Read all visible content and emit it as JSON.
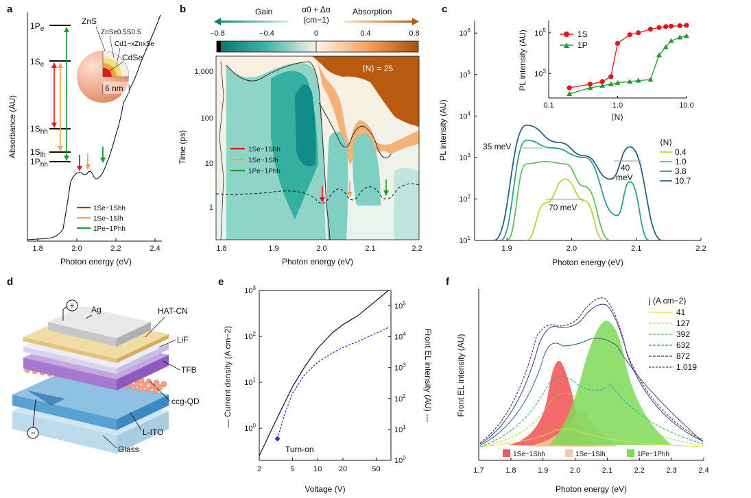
{
  "colors": {
    "red": "#e3141b",
    "orange": "#f2a25b",
    "green": "#1e9b2f",
    "pl_04": "#b9d33e",
    "pl_10": "#62bd5e",
    "pl_38": "#2e9c8c",
    "pl_107": "#2b5e86",
    "gain": "#1f9d93",
    "absorption": "#b85a0f"
  },
  "panel_labels": [
    "a",
    "b",
    "c",
    "d",
    "e",
    "f"
  ],
  "panel_a": {
    "xlabel": "Photon energy (eV)",
    "ylabel": "Absorbance (AU)",
    "xticks": [
      "1.8",
      "2.0",
      "2.2",
      "2.4"
    ],
    "levels": [
      {
        "main": "1P",
        "sub": "e"
      },
      {
        "main": "1S",
        "sub": "e"
      },
      {
        "main": "1S",
        "sub": "hh"
      },
      {
        "main": "1S",
        "sub": "lh"
      },
      {
        "main": "1P",
        "sub": "hh"
      }
    ],
    "shell_labels": [
      "ZnS",
      "ZnSe0.5S0.5",
      "Cd1−xZnxSe",
      "CdSe"
    ],
    "size_label": "6 nm",
    "legend": [
      "1Se−1Shh",
      "1Se−1Slh",
      "1Pe−1Phh"
    ],
    "chart_data": {
      "type": "line",
      "x": [
        1.78,
        1.85,
        1.9,
        1.95,
        2.0,
        2.03,
        2.06,
        2.09,
        2.13,
        2.18,
        2.22,
        2.26,
        2.3,
        2.35,
        2.4
      ],
      "values": [
        0.02,
        0.05,
        0.09,
        0.16,
        0.25,
        0.33,
        0.31,
        0.34,
        0.37,
        0.47,
        0.57,
        0.62,
        0.73,
        0.85,
        0.98
      ],
      "xlim": [
        1.75,
        2.45
      ],
      "transition_energies_eV": [
        2.02,
        2.06,
        2.14
      ]
    }
  },
  "panel_b": {
    "colorbar_title": "α0 + Δα",
    "colorbar_unit": "(cm−1)",
    "gain_label": "Gain",
    "absorption_label": "Absorption",
    "colorbar_ticks": [
      "−0.8",
      "−0.4",
      "0",
      "0.4",
      "0.8"
    ],
    "n_label": "⟨N⟩ = 25",
    "xlabel": "Photon energy (eV)",
    "ylabel": "Time (ps)",
    "xticks": [
      "1.8",
      "1.9",
      "2.0",
      "2.1",
      "2.2"
    ],
    "yticks": [
      "1",
      "10",
      "100",
      "1,000"
    ],
    "legend": [
      "1Se−1Shh",
      "1Se−1Slh",
      "1Pe−1Phh"
    ],
    "chart_data": {
      "type": "heatmap",
      "xlim": [
        1.78,
        2.2
      ],
      "ylim_ps": [
        0.25,
        2000
      ],
      "yscale": "log",
      "colorbar_range": [
        -0.8,
        0.8
      ],
      "gain_region_note": "teal gain lobes centred near 1.96, 2.03 and 2.09 eV",
      "transition_energies_eV": [
        2.0,
        2.055,
        2.13
      ]
    }
  },
  "panel_c": {
    "xlabel": "Photon energy (eV)",
    "ylabel": "PL intensity (AU)",
    "xticks": [
      "1.9",
      "2.0",
      "2.1",
      "2.2"
    ],
    "yticks": [
      "10^1",
      "10^2",
      "10^3",
      "10^4",
      "10^5",
      "10^6"
    ],
    "annotations": [
      "35 meV",
      "70 meV",
      "40",
      "meV"
    ],
    "legend_title": "⟨N⟩",
    "inset": {
      "xlabel": "⟨N⟩",
      "ylabel": "PL intensity (AU)",
      "xticks": [
        "0.1",
        "1.0",
        "10.0"
      ],
      "yticks": [
        "10^3",
        "10^5"
      ],
      "legend": [
        "1S",
        "1P"
      ]
    },
    "chart_data": {
      "type": "line",
      "yscale": "log",
      "xlim": [
        1.85,
        2.2
      ],
      "ylim": [
        10,
        2000000
      ],
      "series": [
        {
          "name": "0.4",
          "x": [
            1.93,
            1.96,
            1.99,
            2.02,
            2.05
          ],
          "values": [
            10,
            80,
            300,
            90,
            10
          ]
        },
        {
          "name": "1.0",
          "x": [
            1.9,
            1.93,
            1.96,
            1.99,
            2.02,
            2.06
          ],
          "values": [
            10,
            700,
            800,
            700,
            200,
            10
          ]
        },
        {
          "name": "3.8",
          "x": [
            1.89,
            1.93,
            1.97,
            2.02,
            2.07,
            2.09,
            2.12
          ],
          "values": [
            10,
            2600,
            1700,
            1000,
            40,
            260,
            10
          ]
        },
        {
          "name": "10.7",
          "x": [
            1.88,
            1.93,
            1.98,
            2.02,
            2.06,
            2.09,
            2.14
          ],
          "values": [
            10,
            6000,
            2300,
            1100,
            300,
            1800,
            10
          ]
        }
      ],
      "inset_series": [
        {
          "name": "1S",
          "x": [
            0.2,
            0.4,
            0.6,
            0.8,
            1.0,
            1.5,
            2.0,
            3.0,
            4.0,
            5.0,
            6.0,
            8.0,
            10.0
          ],
          "values": [
            200,
            300,
            400,
            700,
            30000,
            80000,
            100000,
            150000,
            180000,
            200000,
            210000,
            220000,
            230000
          ]
        },
        {
          "name": "1P",
          "x": [
            0.2,
            0.4,
            0.6,
            0.8,
            1.0,
            1.5,
            2.0,
            3.0,
            4.0,
            5.0,
            6.0,
            8.0,
            10.0
          ],
          "values": [
            100,
            200,
            250,
            300,
            350,
            400,
            450,
            500,
            8000,
            20000,
            40000,
            60000,
            70000
          ]
        }
      ]
    }
  },
  "panel_d": {
    "layers": [
      "Ag",
      "HAT-CN",
      "LiF",
      "TFB",
      "ccg-QD",
      "L-ITO",
      "Glass"
    ],
    "plus": "+",
    "minus": "−"
  },
  "panel_e": {
    "xlabel": "Voltage (V)",
    "ylabel_left": "Current density (A cm−2)",
    "ylabel_right": "Front EL intensity (AU)",
    "xticks": [
      "2",
      "5",
      "10",
      "20",
      "50"
    ],
    "yticks_left": [
      "10^0",
      "10^1",
      "10^2",
      "10^3"
    ],
    "yticks_right": [
      "10^0",
      "10^1",
      "10^2",
      "10^3",
      "10^4",
      "10^5"
    ],
    "turn_on": "Turn-on",
    "chart_data": {
      "type": "line",
      "xscale": "log",
      "yscale": "log",
      "series": [
        {
          "name": "Current density",
          "x": [
            2,
            3,
            4,
            5,
            7,
            10,
            15,
            20,
            30,
            50,
            70
          ],
          "values": [
            0.25,
            1.2,
            3.5,
            8,
            22,
            55,
            120,
            180,
            280,
            600,
            1000
          ]
        },
        {
          "name": "Front EL intensity",
          "x": [
            3.3,
            4,
            5,
            7,
            10,
            15,
            20,
            30,
            50,
            70
          ],
          "values": [
            5,
            30,
            150,
            600,
            1500,
            3000,
            4500,
            7000,
            13000,
            20000
          ]
        }
      ],
      "turn_on_V": 3.3
    }
  },
  "panel_f": {
    "xlabel": "Photon energy (eV)",
    "ylabel": "Front EL intensity (AU)",
    "xticks": [
      "1.7",
      "1.8",
      "1.9",
      "2.0",
      "2.1",
      "2.2",
      "2.3",
      "2.4"
    ],
    "legend_title": "j (A cm−2)",
    "legend": [
      "41",
      "127",
      "392",
      "632",
      "872",
      "1,019"
    ],
    "fill_legend": [
      "1Se−1Shh",
      "1Se−1Slh",
      "1Pe−1Phh"
    ],
    "chart_data": {
      "type": "area",
      "xlim": [
        1.7,
        2.4
      ],
      "peaks_eV": {
        "1Se-1Shh": 1.95,
        "1Se-1Slh": 2.02,
        "1Pe-1Phh": 2.09
      }
    }
  }
}
